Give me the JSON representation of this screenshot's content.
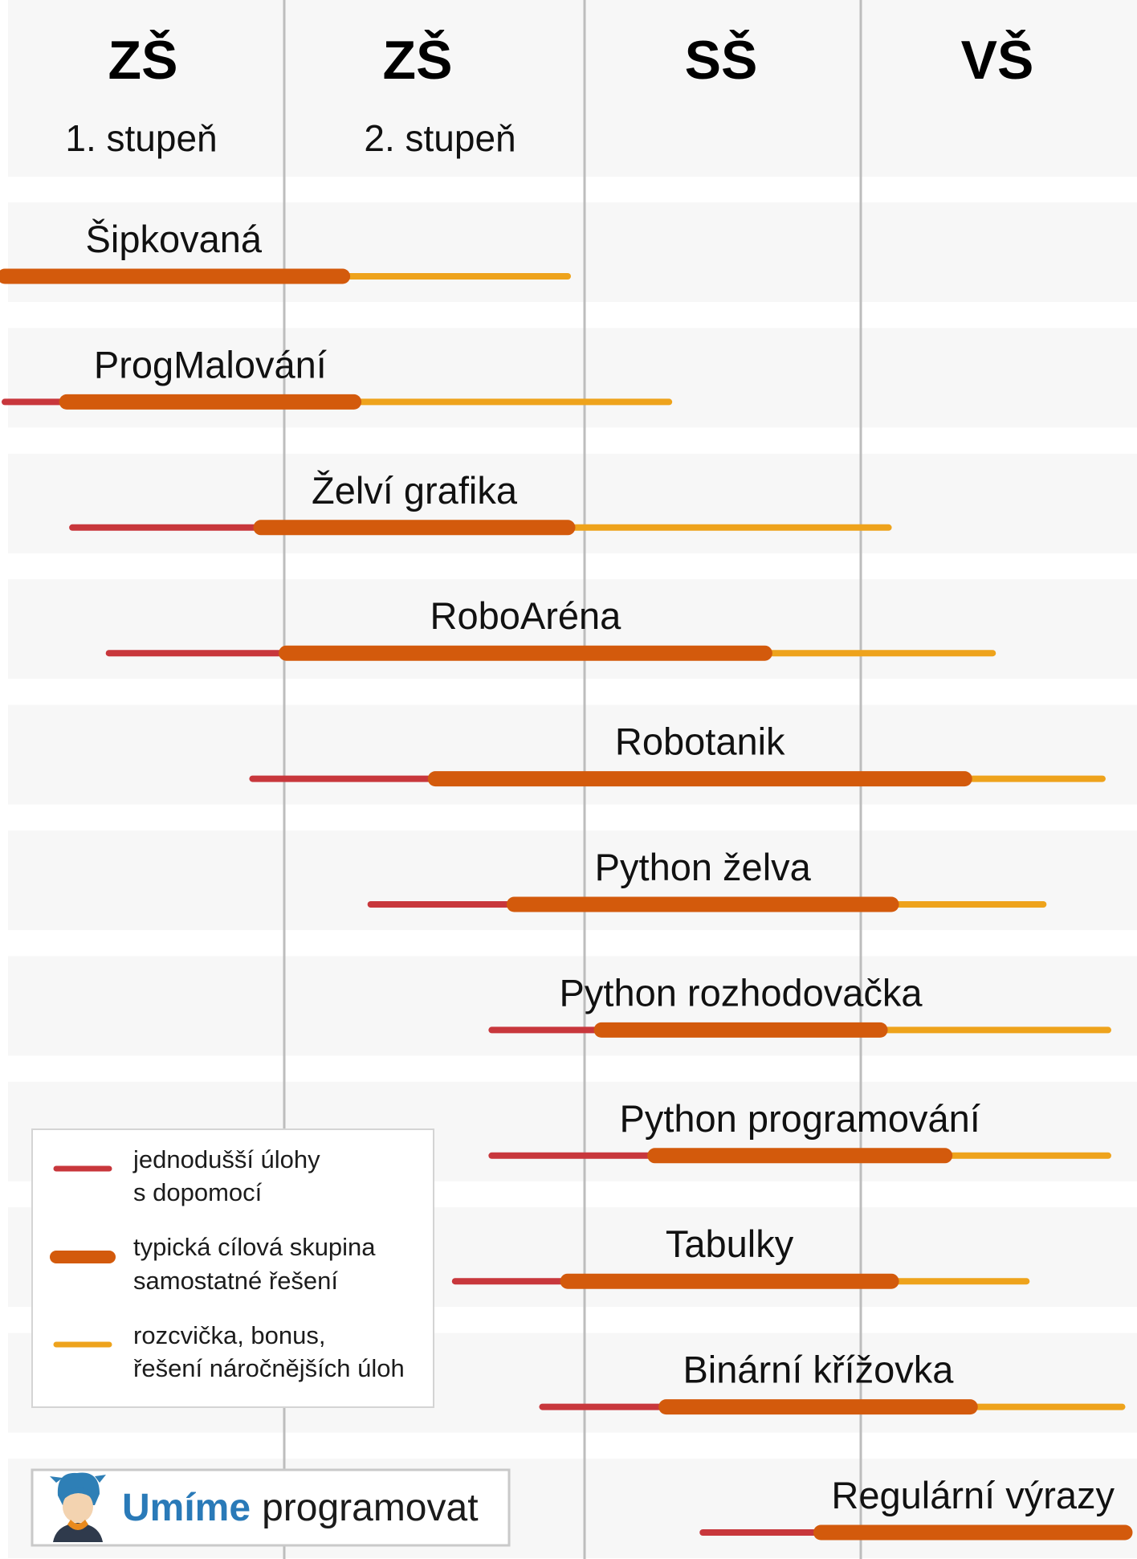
{
  "chart_data": {
    "type": "range-bar",
    "title": "",
    "axis": {
      "min": 0,
      "max": 4,
      "levels": [
        {
          "main": "ZŠ",
          "sub": "1. stupeň"
        },
        {
          "main": "ZŠ",
          "sub": "2. stupeň"
        },
        {
          "main": "SŠ",
          "sub": ""
        },
        {
          "main": "VŠ",
          "sub": ""
        }
      ]
    },
    "colors": {
      "easy": "#c8373c",
      "typical": "#d35a0c",
      "bonus": "#eea31c",
      "band": "#f7f7f7",
      "grid": "#bdbdbd"
    },
    "apps": [
      {
        "name": "Šipkovaná",
        "easy": [
          0.0,
          0.0
        ],
        "typical": [
          0.0,
          1.2
        ],
        "bonus": [
          1.2,
          2.0
        ]
      },
      {
        "name": "ProgMalování",
        "easy": [
          0.0,
          0.22
        ],
        "typical": [
          0.22,
          1.24
        ],
        "bonus": [
          1.24,
          2.36
        ]
      },
      {
        "name": "Želví grafika",
        "easy": [
          0.24,
          0.91
        ],
        "typical": [
          0.91,
          2.0
        ],
        "bonus": [
          2.0,
          3.14
        ]
      },
      {
        "name": "RoboAréna",
        "easy": [
          0.37,
          1.0
        ],
        "typical": [
          1.0,
          2.7
        ],
        "bonus": [
          2.7,
          3.51
        ]
      },
      {
        "name": "Robotanik",
        "easy": [
          0.88,
          1.53
        ],
        "typical": [
          1.53,
          3.41
        ],
        "bonus": [
          3.41,
          3.9
        ]
      },
      {
        "name": "Python želva",
        "easy": [
          1.3,
          1.81
        ],
        "typical": [
          1.81,
          3.15
        ],
        "bonus": [
          3.15,
          3.69
        ]
      },
      {
        "name": "Python rozhodovačka",
        "easy": [
          1.73,
          2.12
        ],
        "typical": [
          2.12,
          3.11
        ],
        "bonus": [
          3.11,
          3.92
        ]
      },
      {
        "name": "Python programování",
        "easy": [
          1.73,
          2.31
        ],
        "typical": [
          2.31,
          3.34
        ],
        "bonus": [
          3.34,
          3.92
        ]
      },
      {
        "name": "Tabulky",
        "easy": [
          1.6,
          2.0
        ],
        "typical": [
          2.0,
          3.15
        ],
        "bonus": [
          3.15,
          3.63
        ]
      },
      {
        "name": "Binární křížovka",
        "easy": [
          1.91,
          2.35
        ],
        "typical": [
          2.35,
          3.43
        ],
        "bonus": [
          3.43,
          3.97
        ]
      },
      {
        "name": "Regulární výrazy",
        "easy": [
          2.48,
          2.9
        ],
        "typical": [
          2.9,
          3.98
        ],
        "bonus": [
          3.98,
          3.98
        ]
      }
    ],
    "legend": {
      "position": "bottom-left",
      "entries": [
        {
          "key": "easy",
          "line1": "jednodušší úlohy",
          "line2": "s dopomocí"
        },
        {
          "key": "typical",
          "line1": "typická cílová skupina",
          "line2": "samostatné řešení"
        },
        {
          "key": "bonus",
          "line1": "rozcvička, bonus,",
          "line2": "řešení náročnějších úloh"
        }
      ]
    }
  },
  "branding": {
    "part1": "Umíme",
    "part2": "programovat",
    "mascot": "mascot-icon"
  }
}
